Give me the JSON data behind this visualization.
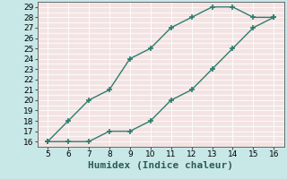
{
  "xlabel": "Humidex (Indice chaleur)",
  "line1_x": [
    5,
    6,
    7,
    8,
    9,
    10,
    11,
    12,
    13,
    14,
    15,
    16
  ],
  "line1_y": [
    16,
    18,
    20,
    21,
    24,
    25,
    27,
    28,
    29,
    29,
    28,
    28
  ],
  "line2_x": [
    5,
    6,
    7,
    8,
    9,
    10,
    11,
    12,
    13,
    14,
    15,
    16
  ],
  "line2_y": [
    16,
    16,
    16,
    17,
    17,
    18,
    20,
    21,
    23,
    25,
    27,
    28
  ],
  "line_color": "#2e7d6e",
  "bg_color": "#c8e8e8",
  "grid_major_color": "#ffffff",
  "grid_minor_color": "#e8c8c8",
  "xlim": [
    4.5,
    16.5
  ],
  "ylim": [
    15.5,
    29.5
  ],
  "xticks": [
    5,
    6,
    7,
    8,
    9,
    10,
    11,
    12,
    13,
    14,
    15,
    16
  ],
  "yticks": [
    16,
    17,
    18,
    19,
    20,
    21,
    22,
    23,
    24,
    25,
    26,
    27,
    28,
    29
  ],
  "marker": "+",
  "markersize": 4,
  "markeredgewidth": 1.2,
  "linewidth": 1.0,
  "xlabel_fontsize": 8,
  "tick_fontsize": 6.5
}
